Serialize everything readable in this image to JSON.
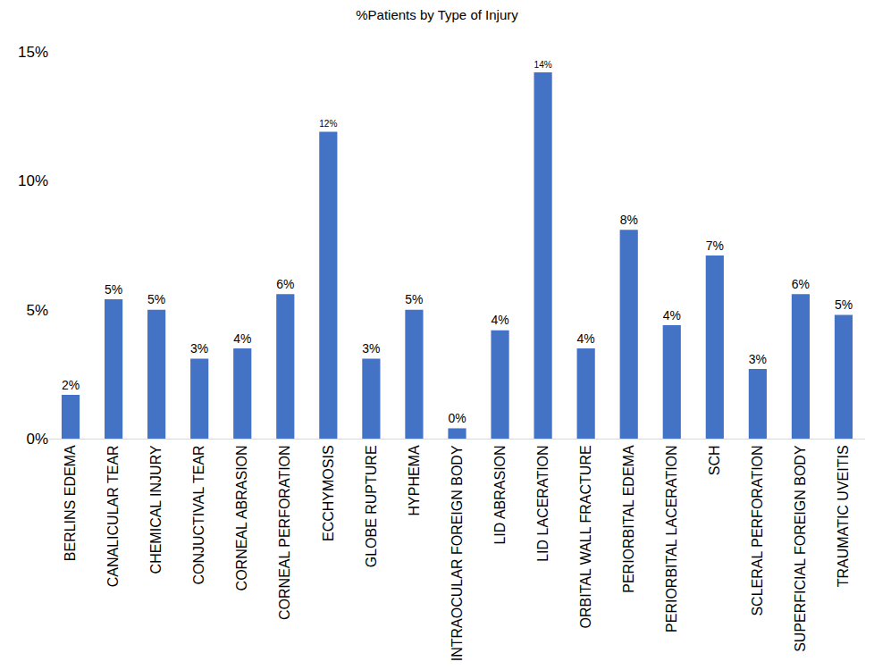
{
  "chart_data": {
    "type": "bar",
    "title": "%Patients by Type of Injury",
    "categories": [
      "BERLINS EDEMA",
      "CANALICULAR TEAR",
      "CHEMICAL INJURY",
      "CONJUCTIVAL TEAR",
      "CORNEAL ABRASION",
      "CORNEAL PERFORATION",
      "ECCHYMOSIS",
      "GLOBE RUPTURE",
      "HYPHEMA",
      "INTRAOCULAR FOREIGN BODY",
      "LID ABRASION",
      "LID LACERATION",
      "ORBITAL WALL FRACTURE",
      "PERIORBITAL EDEMA",
      "PERIORBITAL LACERATION",
      "SCH",
      "SCLERAL PERFORATION",
      "SUPERFICIAL FOREIGN BODY",
      "TRAUMATIC UVEITIS"
    ],
    "values": [
      1.7,
      5.4,
      5.0,
      3.1,
      3.5,
      5.6,
      11.9,
      3.1,
      5.0,
      0.4,
      4.2,
      14.2,
      3.5,
      8.1,
      4.4,
      7.1,
      2.7,
      5.6,
      4.8
    ],
    "value_labels": [
      "2%",
      "5%",
      "5%",
      "3%",
      "4%",
      "6%",
      "12%",
      "3%",
      "5%",
      "0%",
      "4%",
      "14%",
      "4%",
      "8%",
      "4%",
      "7%",
      "3%",
      "6%",
      "5%"
    ],
    "data_labels": true,
    "color": "#4472c4",
    "ylim": [
      0,
      15
    ],
    "yticks": [
      {
        "value": 0,
        "label": "0%"
      },
      {
        "value": 5,
        "label": "5%"
      },
      {
        "value": 10,
        "label": "10%"
      },
      {
        "value": 15,
        "label": "15%"
      }
    ],
    "grid": false
  }
}
